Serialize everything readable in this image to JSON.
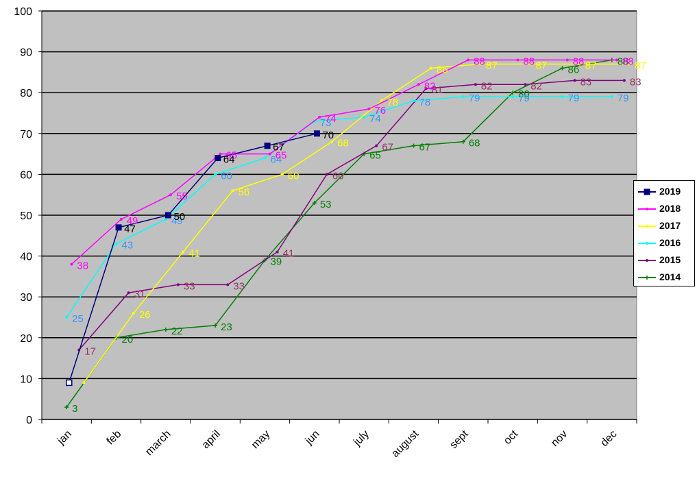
{
  "chart_data": {
    "type": "line",
    "categories": [
      "jan",
      "feb",
      "march",
      "april",
      "may",
      "jun",
      "july",
      "august",
      "sept",
      "oct",
      "nov",
      "dec"
    ],
    "ylim": [
      0,
      100
    ],
    "y_ticks": [
      "0",
      "10",
      "20",
      "30",
      "40",
      "50",
      "60",
      "70",
      "80",
      "90",
      "100"
    ],
    "grid": "horizontal",
    "plot_background": "#c0c0c0",
    "legend_position": "right",
    "series": [
      {
        "name": "2019",
        "color": "#000080",
        "marker": "square",
        "values": [
          9,
          47,
          50,
          64,
          67,
          70,
          null,
          null,
          null,
          null,
          null,
          null
        ],
        "labels": [
          "",
          "47",
          "50",
          "64",
          "67",
          "70",
          "",
          "",
          "",
          "",
          "",
          ""
        ]
      },
      {
        "name": "2018",
        "color": "#ff00ff",
        "marker": "dot",
        "values": [
          38,
          49,
          55,
          65,
          65,
          74,
          76,
          82,
          88,
          88,
          88,
          88
        ],
        "labels": [
          "38",
          "49",
          "55",
          "65",
          "65",
          "74",
          "76",
          "82",
          "88",
          "88",
          "88",
          "88"
        ]
      },
      {
        "name": "2017",
        "color": "#ffff00",
        "marker": "dot",
        "values": [
          9,
          26,
          41,
          56,
          60,
          68,
          78,
          86,
          87,
          87,
          87,
          87
        ],
        "labels": [
          "",
          "26",
          "41",
          "56",
          "60",
          "68",
          "78",
          "86",
          "87",
          "87",
          "87",
          "87"
        ]
      },
      {
        "name": "2016",
        "color": "#00ffff",
        "marker": "dot",
        "values": [
          25,
          43,
          49,
          60,
          64,
          73,
          74,
          78,
          79,
          79,
          79,
          79
        ],
        "labels": [
          "25",
          "43",
          "49",
          "60",
          "64",
          "73",
          "74",
          "78",
          "79",
          "79",
          "79",
          "79"
        ]
      },
      {
        "name": "2015",
        "color": "#800080",
        "marker": "dot",
        "values": [
          17,
          31,
          33,
          33,
          41,
          60,
          67,
          81,
          82,
          82,
          83,
          83
        ],
        "labels": [
          "17",
          "31",
          "33",
          "33",
          "41",
          "60",
          "67",
          "81",
          "82",
          "82",
          "83",
          "83"
        ]
      },
      {
        "name": "2014",
        "color": "#008000",
        "marker": "plus",
        "values": [
          3,
          20,
          22,
          23,
          39,
          53,
          65,
          67,
          68,
          80,
          86,
          88
        ],
        "labels": [
          "3",
          "20",
          "22",
          "23",
          "39",
          "53",
          "65",
          "67",
          "68",
          "80",
          "86",
          "88"
        ]
      }
    ]
  }
}
